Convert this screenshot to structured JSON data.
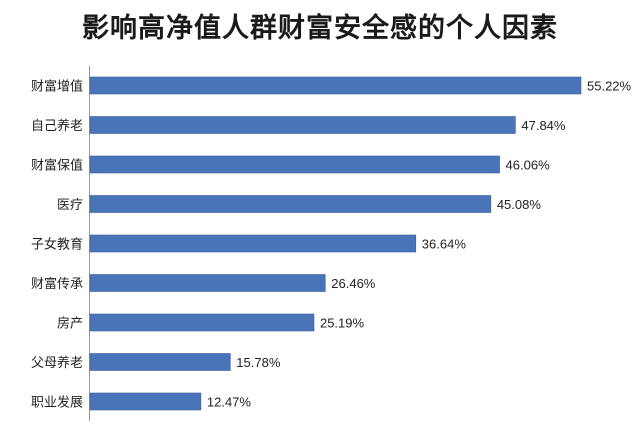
{
  "chart_data": {
    "type": "bar",
    "orientation": "horizontal",
    "title": "影响高净值人群财富安全感的个人因素",
    "categories": [
      "财富增值",
      "自己养老",
      "财富保值",
      "医疗",
      "子女教育",
      "财富传承",
      "房产",
      "父母养老",
      "职业发展"
    ],
    "values": [
      55.22,
      47.84,
      46.06,
      45.08,
      36.64,
      26.46,
      25.19,
      15.78,
      12.47
    ],
    "value_labels": [
      "55.22%",
      "47.84%",
      "46.06%",
      "45.08%",
      "36.64%",
      "26.46%",
      "25.19%",
      "15.78%",
      "12.47%"
    ],
    "xlim": [
      0,
      55.22
    ],
    "bar_color": "#4a74b8",
    "bar_edge_color": "#3a5f9a",
    "grid": false,
    "legend": "none"
  }
}
